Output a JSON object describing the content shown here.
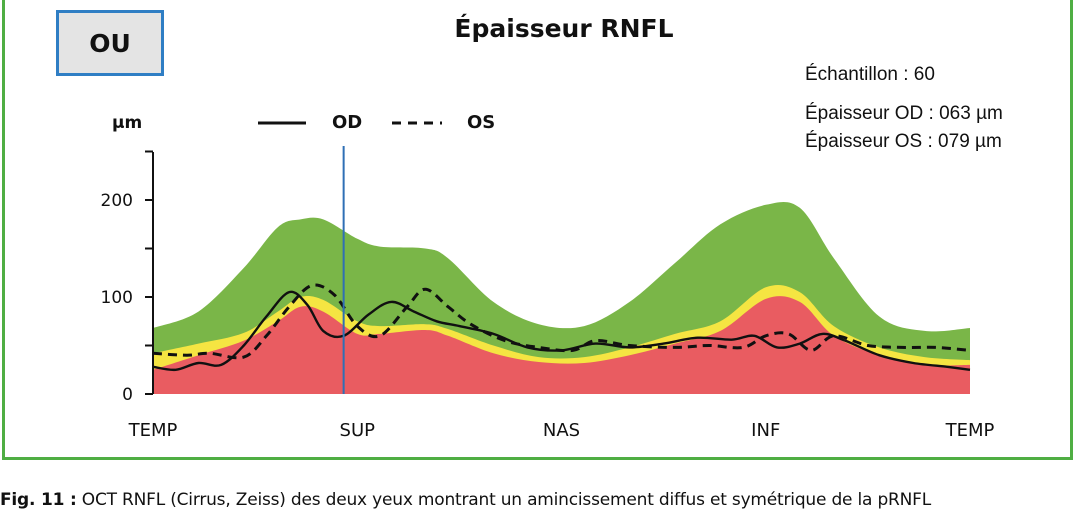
{
  "eye_label": "OU",
  "title": "Épaisseur RNFL",
  "info": {
    "sample": "Échantillon : 60",
    "thickness_od": "Épaisseur OD : 063 µm",
    "thickness_os": "Épaisseur OS : 079 µm"
  },
  "caption": {
    "prefix": "Fig. 11 :",
    "text": "OCT RNFL (Cirrus, Zeiss) des deux yeux montrant un amincissement diffus et symétrique de la pRNFL"
  },
  "colors": {
    "frame": "#4fae43",
    "badge_border": "#2f7ec4",
    "normal_band": "#7ab648",
    "borderline_band": "#f5e542",
    "abnormal_band": "#e95c61",
    "cursor": "#2f6fb5"
  },
  "chart_data": {
    "type": "line",
    "title": "Épaisseur RNFL",
    "ylabel": "µm",
    "ylim": [
      0,
      250
    ],
    "yticks": [
      0,
      100,
      200
    ],
    "xlim": [
      0,
      360
    ],
    "xticks": [
      {
        "x": 0,
        "label": "TEMP"
      },
      {
        "x": 90,
        "label": "SUP"
      },
      {
        "x": 180,
        "label": "NAS"
      },
      {
        "x": 270,
        "label": "INF"
      },
      {
        "x": 360,
        "label": "TEMP"
      }
    ],
    "cursor_x": 84,
    "legend": [
      "OD",
      "OS"
    ],
    "bands": {
      "abnormal_upper": [
        [
          0,
          25
        ],
        [
          20,
          40
        ],
        [
          40,
          55
        ],
        [
          55,
          75
        ],
        [
          65,
          90
        ],
        [
          75,
          85
        ],
        [
          90,
          62
        ],
        [
          100,
          62
        ],
        [
          120,
          66
        ],
        [
          130,
          60
        ],
        [
          150,
          42
        ],
        [
          170,
          33
        ],
        [
          190,
          32
        ],
        [
          210,
          40
        ],
        [
          230,
          52
        ],
        [
          250,
          65
        ],
        [
          270,
          98
        ],
        [
          285,
          95
        ],
        [
          300,
          60
        ],
        [
          320,
          40
        ],
        [
          340,
          30
        ],
        [
          360,
          30
        ]
      ],
      "borderline_upper": [
        [
          0,
          42
        ],
        [
          20,
          52
        ],
        [
          40,
          63
        ],
        [
          55,
          85
        ],
        [
          65,
          100
        ],
        [
          75,
          97
        ],
        [
          90,
          75
        ],
        [
          100,
          70
        ],
        [
          120,
          72
        ],
        [
          130,
          67
        ],
        [
          150,
          50
        ],
        [
          170,
          38
        ],
        [
          190,
          38
        ],
        [
          210,
          48
        ],
        [
          230,
          62
        ],
        [
          250,
          75
        ],
        [
          270,
          110
        ],
        [
          285,
          105
        ],
        [
          300,
          70
        ],
        [
          320,
          48
        ],
        [
          340,
          38
        ],
        [
          360,
          35
        ]
      ],
      "normal_upper": [
        [
          0,
          68
        ],
        [
          20,
          85
        ],
        [
          40,
          130
        ],
        [
          55,
          172
        ],
        [
          65,
          180
        ],
        [
          75,
          180
        ],
        [
          90,
          160
        ],
        [
          100,
          152
        ],
        [
          120,
          150
        ],
        [
          130,
          140
        ],
        [
          150,
          95
        ],
        [
          170,
          72
        ],
        [
          190,
          70
        ],
        [
          210,
          95
        ],
        [
          230,
          135
        ],
        [
          250,
          175
        ],
        [
          270,
          195
        ],
        [
          285,
          192
        ],
        [
          300,
          140
        ],
        [
          320,
          80
        ],
        [
          340,
          65
        ],
        [
          360,
          68
        ]
      ]
    },
    "series": [
      {
        "name": "OD",
        "style": "solid",
        "points": [
          [
            0,
            28
          ],
          [
            10,
            25
          ],
          [
            20,
            32
          ],
          [
            30,
            30
          ],
          [
            40,
            50
          ],
          [
            50,
            80
          ],
          [
            60,
            105
          ],
          [
            68,
            92
          ],
          [
            75,
            65
          ],
          [
            84,
            60
          ],
          [
            95,
            82
          ],
          [
            105,
            95
          ],
          [
            115,
            85
          ],
          [
            125,
            75
          ],
          [
            135,
            70
          ],
          [
            150,
            62
          ],
          [
            165,
            48
          ],
          [
            180,
            45
          ],
          [
            195,
            52
          ],
          [
            210,
            48
          ],
          [
            225,
            52
          ],
          [
            240,
            58
          ],
          [
            255,
            56
          ],
          [
            265,
            60
          ],
          [
            275,
            48
          ],
          [
            285,
            52
          ],
          [
            295,
            62
          ],
          [
            305,
            55
          ],
          [
            320,
            40
          ],
          [
            335,
            32
          ],
          [
            350,
            28
          ],
          [
            360,
            25
          ]
        ]
      },
      {
        "name": "OS",
        "style": "dashed",
        "points": [
          [
            0,
            42
          ],
          [
            15,
            40
          ],
          [
            25,
            42
          ],
          [
            40,
            38
          ],
          [
            50,
            60
          ],
          [
            60,
            90
          ],
          [
            70,
            112
          ],
          [
            80,
            102
          ],
          [
            90,
            70
          ],
          [
            100,
            60
          ],
          [
            112,
            90
          ],
          [
            120,
            108
          ],
          [
            130,
            90
          ],
          [
            140,
            72
          ],
          [
            155,
            55
          ],
          [
            170,
            48
          ],
          [
            185,
            45
          ],
          [
            195,
            55
          ],
          [
            210,
            50
          ],
          [
            230,
            48
          ],
          [
            245,
            50
          ],
          [
            260,
            48
          ],
          [
            270,
            60
          ],
          [
            280,
            62
          ],
          [
            290,
            45
          ],
          [
            300,
            60
          ],
          [
            315,
            50
          ],
          [
            330,
            48
          ],
          [
            345,
            48
          ],
          [
            360,
            45
          ]
        ]
      }
    ]
  }
}
